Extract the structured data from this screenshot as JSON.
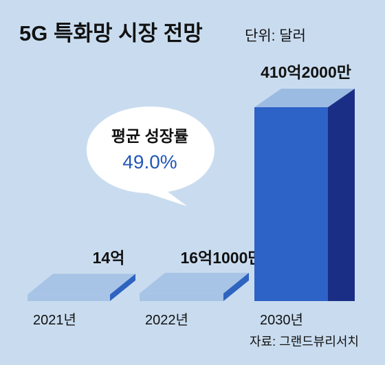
{
  "title": "5G 특화망 시장 전망",
  "unit": "단위: 달러",
  "source": "자료: 그랜드뷰리서치",
  "callout": {
    "title": "평균 성장률",
    "value": "49.0%"
  },
  "colors": {
    "background": "#c9dcef",
    "slab_top": "#a7c4e6",
    "slab_side": "#2f63c0",
    "bar_front": "#2d62c6",
    "bar_top": "#9cbbe3",
    "bar_side": "#1b2e86",
    "bubble": "#ffffff",
    "callout_value": "#2357b8"
  },
  "chart_data": {
    "type": "bar",
    "categories": [
      "2021년",
      "2022년",
      "2030년"
    ],
    "values": [
      1400000000,
      1610000000,
      41020000000
    ],
    "value_labels": [
      "14억",
      "16억1000만",
      "410억2000만"
    ],
    "title": "5G 특화망 시장 전망",
    "ylabel": "",
    "xlabel": "",
    "grid": false,
    "legend": "none"
  }
}
